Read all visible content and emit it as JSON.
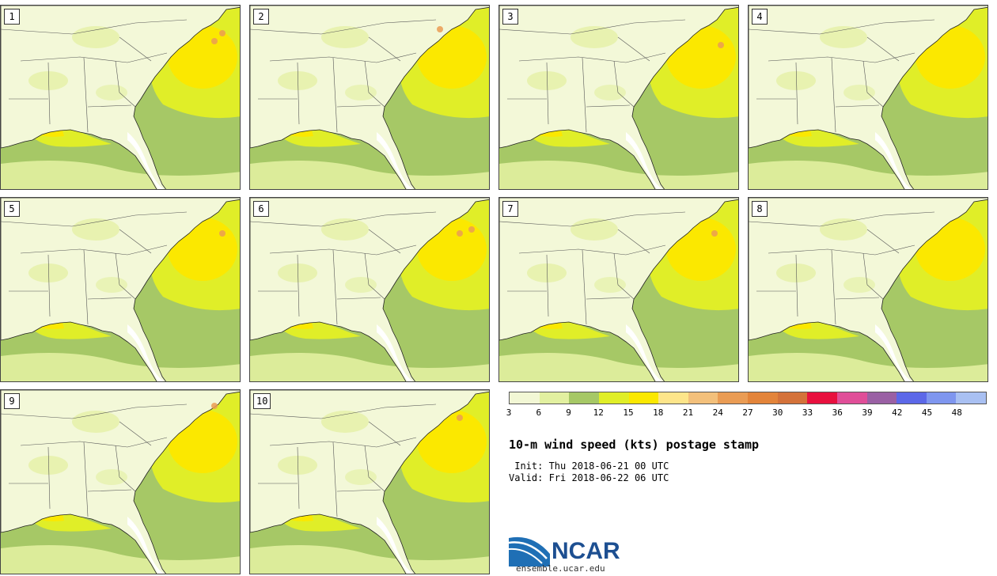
{
  "panels": [
    {
      "label": "1",
      "hot": [
        [
          280,
          35
        ],
        [
          270,
          45
        ]
      ]
    },
    {
      "label": "2",
      "hot": [
        [
          240,
          30
        ]
      ]
    },
    {
      "label": "3",
      "hot": [
        [
          280,
          50
        ]
      ]
    },
    {
      "label": "4",
      "hot": []
    },
    {
      "label": "5",
      "hot": [
        [
          280,
          45
        ]
      ]
    },
    {
      "label": "6",
      "hot": [
        [
          265,
          45
        ],
        [
          280,
          40
        ]
      ]
    },
    {
      "label": "7",
      "hot": [
        [
          272,
          45
        ]
      ]
    },
    {
      "label": "8",
      "hot": []
    },
    {
      "label": "9",
      "hot": [
        [
          270,
          20
        ]
      ]
    },
    {
      "label": "10",
      "hot": [
        [
          265,
          35
        ]
      ]
    }
  ],
  "colorbar": {
    "colors": [
      "#f2f7d5",
      "#e2f0a0",
      "#a6c866",
      "#e0ee28",
      "#fbe800",
      "#fde58a",
      "#f3c07b",
      "#ea9c54",
      "#e3843a",
      "#d4723a",
      "#e8103e",
      "#e04e98",
      "#9a60a4",
      "#5c68e8",
      "#7f96ef",
      "#a9c0f2"
    ],
    "ticks": [
      "3",
      "6",
      "9",
      "12",
      "15",
      "18",
      "21",
      "24",
      "27",
      "30",
      "33",
      "36",
      "39",
      "42",
      "45",
      "48"
    ]
  },
  "title": "10-m wind speed (kts) postage stamp",
  "init": " Init: Thu 2018-06-21 00 UTC",
  "valid": "Valid: Fri 2018-06-22 06 UTC",
  "logo": {
    "name": "NCAR",
    "url": "ensemble.ucar.edu"
  }
}
